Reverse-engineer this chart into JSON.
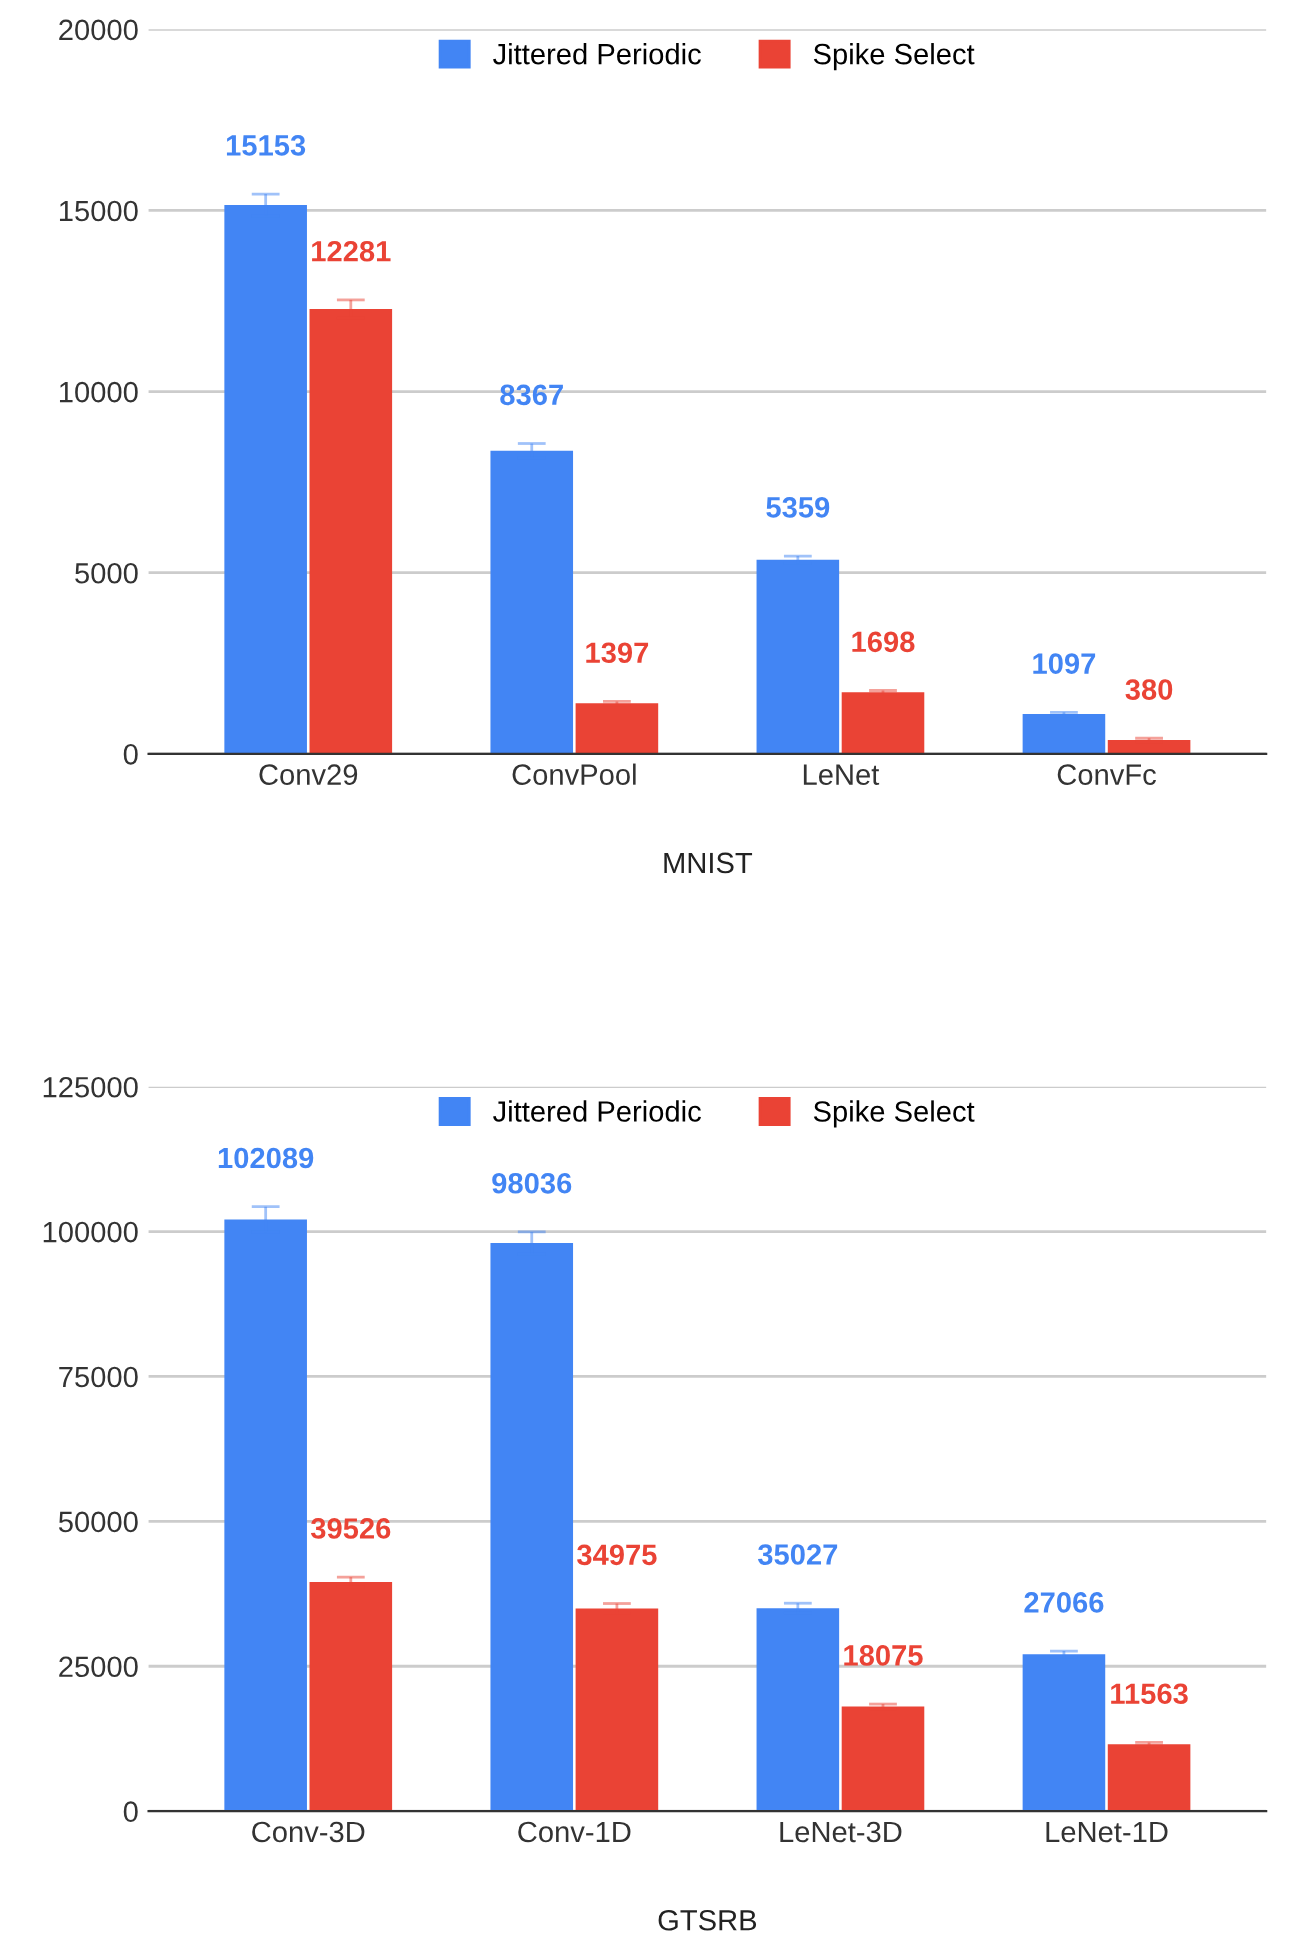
{
  "chart_data": [
    {
      "type": "bar",
      "xlabel": "MNIST",
      "categories": [
        "Conv29",
        "ConvPool",
        "LeNet",
        "ConvFc"
      ],
      "series": [
        {
          "name": "Jittered Periodic",
          "color": "#4285f4",
          "values": [
            15153,
            8367,
            5359,
            1097
          ],
          "errors": [
            300,
            200,
            100,
            50
          ]
        },
        {
          "name": "Spike Select",
          "color": "#ea4335",
          "values": [
            12281,
            1397,
            1698,
            380
          ],
          "errors": [
            250,
            50,
            50,
            50
          ]
        }
      ],
      "ylim": [
        0,
        20000
      ],
      "yticks": [
        0,
        5000,
        10000,
        15000,
        20000
      ],
      "grid": "y",
      "legend": "top",
      "data_labels": true
    },
    {
      "type": "bar",
      "xlabel": "GTSRB",
      "categories": [
        "Conv-3D",
        "Conv-1D",
        "LeNet-3D",
        "LeNet-1D"
      ],
      "series": [
        {
          "name": "Jittered Periodic",
          "color": "#4285f4",
          "values": [
            102089,
            98036,
            35027,
            27066
          ],
          "errors": [
            2200,
            1900,
            850,
            550
          ]
        },
        {
          "name": "Spike Select",
          "color": "#ea4335",
          "values": [
            39526,
            34975,
            18075,
            11563
          ],
          "errors": [
            850,
            850,
            400,
            300
          ]
        }
      ],
      "ylim": [
        0,
        125000
      ],
      "yticks": [
        0,
        25000,
        50000,
        75000,
        100000,
        125000
      ],
      "grid": "y",
      "legend": "top",
      "data_labels": true
    }
  ]
}
